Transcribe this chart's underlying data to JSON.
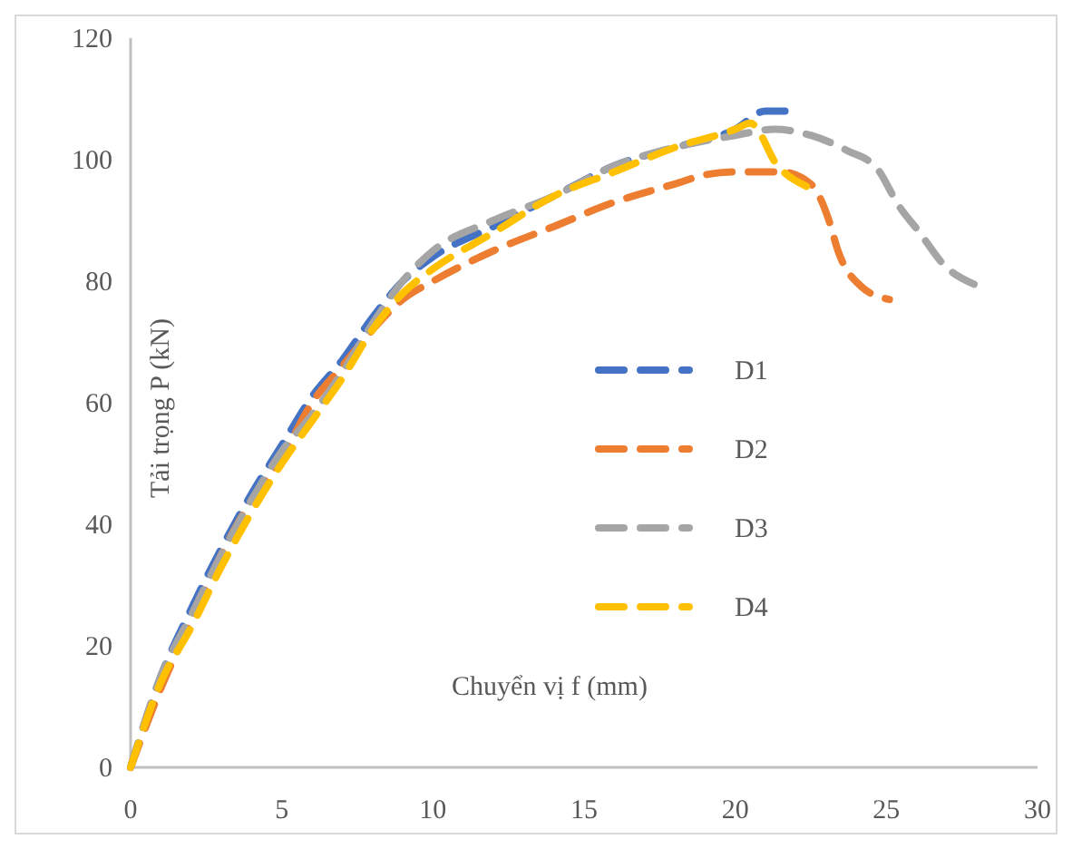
{
  "chart_data": {
    "type": "line",
    "xlabel": "Chuyển vị f (mm)",
    "ylabel": "Tải trọng P (kN)",
    "xlim": [
      0,
      30
    ],
    "ylim": [
      0,
      120
    ],
    "xticks": [
      0,
      5,
      10,
      15,
      20,
      25,
      30
    ],
    "yticks": [
      0,
      20,
      40,
      60,
      80,
      100,
      120
    ],
    "grid": false,
    "legend": "right",
    "line_style": "dashed",
    "marker": "none",
    "series": [
      {
        "name": "D1",
        "color": "#4472c4",
        "x": [
          0,
          1,
          2,
          3,
          4,
          5,
          6,
          7,
          8,
          9,
          10,
          12,
          14,
          16,
          18,
          20,
          21,
          22
        ],
        "values": [
          0,
          15,
          26,
          36,
          45,
          53,
          61,
          67,
          74,
          80,
          84,
          89,
          94,
          99,
          102,
          105,
          108,
          108
        ]
      },
      {
        "name": "D2",
        "color": "#ed7d31",
        "x": [
          0,
          1,
          2,
          3,
          4,
          5,
          6,
          7,
          8,
          9,
          10,
          12,
          14,
          16,
          18,
          19,
          20,
          21.5,
          22.5,
          23.1,
          23.4,
          24.2,
          25.1
        ],
        "values": [
          0,
          13,
          24,
          35,
          44,
          51,
          60,
          66,
          72,
          77,
          80,
          85,
          89,
          93,
          96,
          97.5,
          98,
          98,
          96,
          90,
          85,
          79,
          77
        ]
      },
      {
        "name": "D3",
        "color": "#a5a5a5",
        "x": [
          0,
          1,
          2,
          3,
          4,
          5,
          6,
          7,
          8,
          9,
          10,
          12,
          14,
          16,
          18,
          20,
          21.3,
          22.5,
          23.7,
          24.7,
          25.4,
          26.1,
          26.9,
          27.9
        ],
        "values": [
          0,
          15,
          25,
          35,
          44,
          52,
          58,
          65,
          73,
          80,
          85,
          90,
          94,
          99,
          102,
          104,
          105,
          104,
          101.5,
          98.5,
          92.5,
          88,
          82.7,
          79.5
        ]
      },
      {
        "name": "D4",
        "color": "#ffc000",
        "x": [
          0,
          1,
          2,
          3,
          4,
          5,
          6,
          7,
          8,
          9,
          10,
          12,
          14,
          16,
          18,
          20,
          20.5,
          21.4,
          22.4
        ],
        "values": [
          0,
          14,
          23,
          33,
          42,
          50,
          57,
          64,
          72,
          78,
          82,
          88,
          94,
          98,
          102,
          105,
          106,
          99,
          95.5
        ]
      }
    ]
  }
}
